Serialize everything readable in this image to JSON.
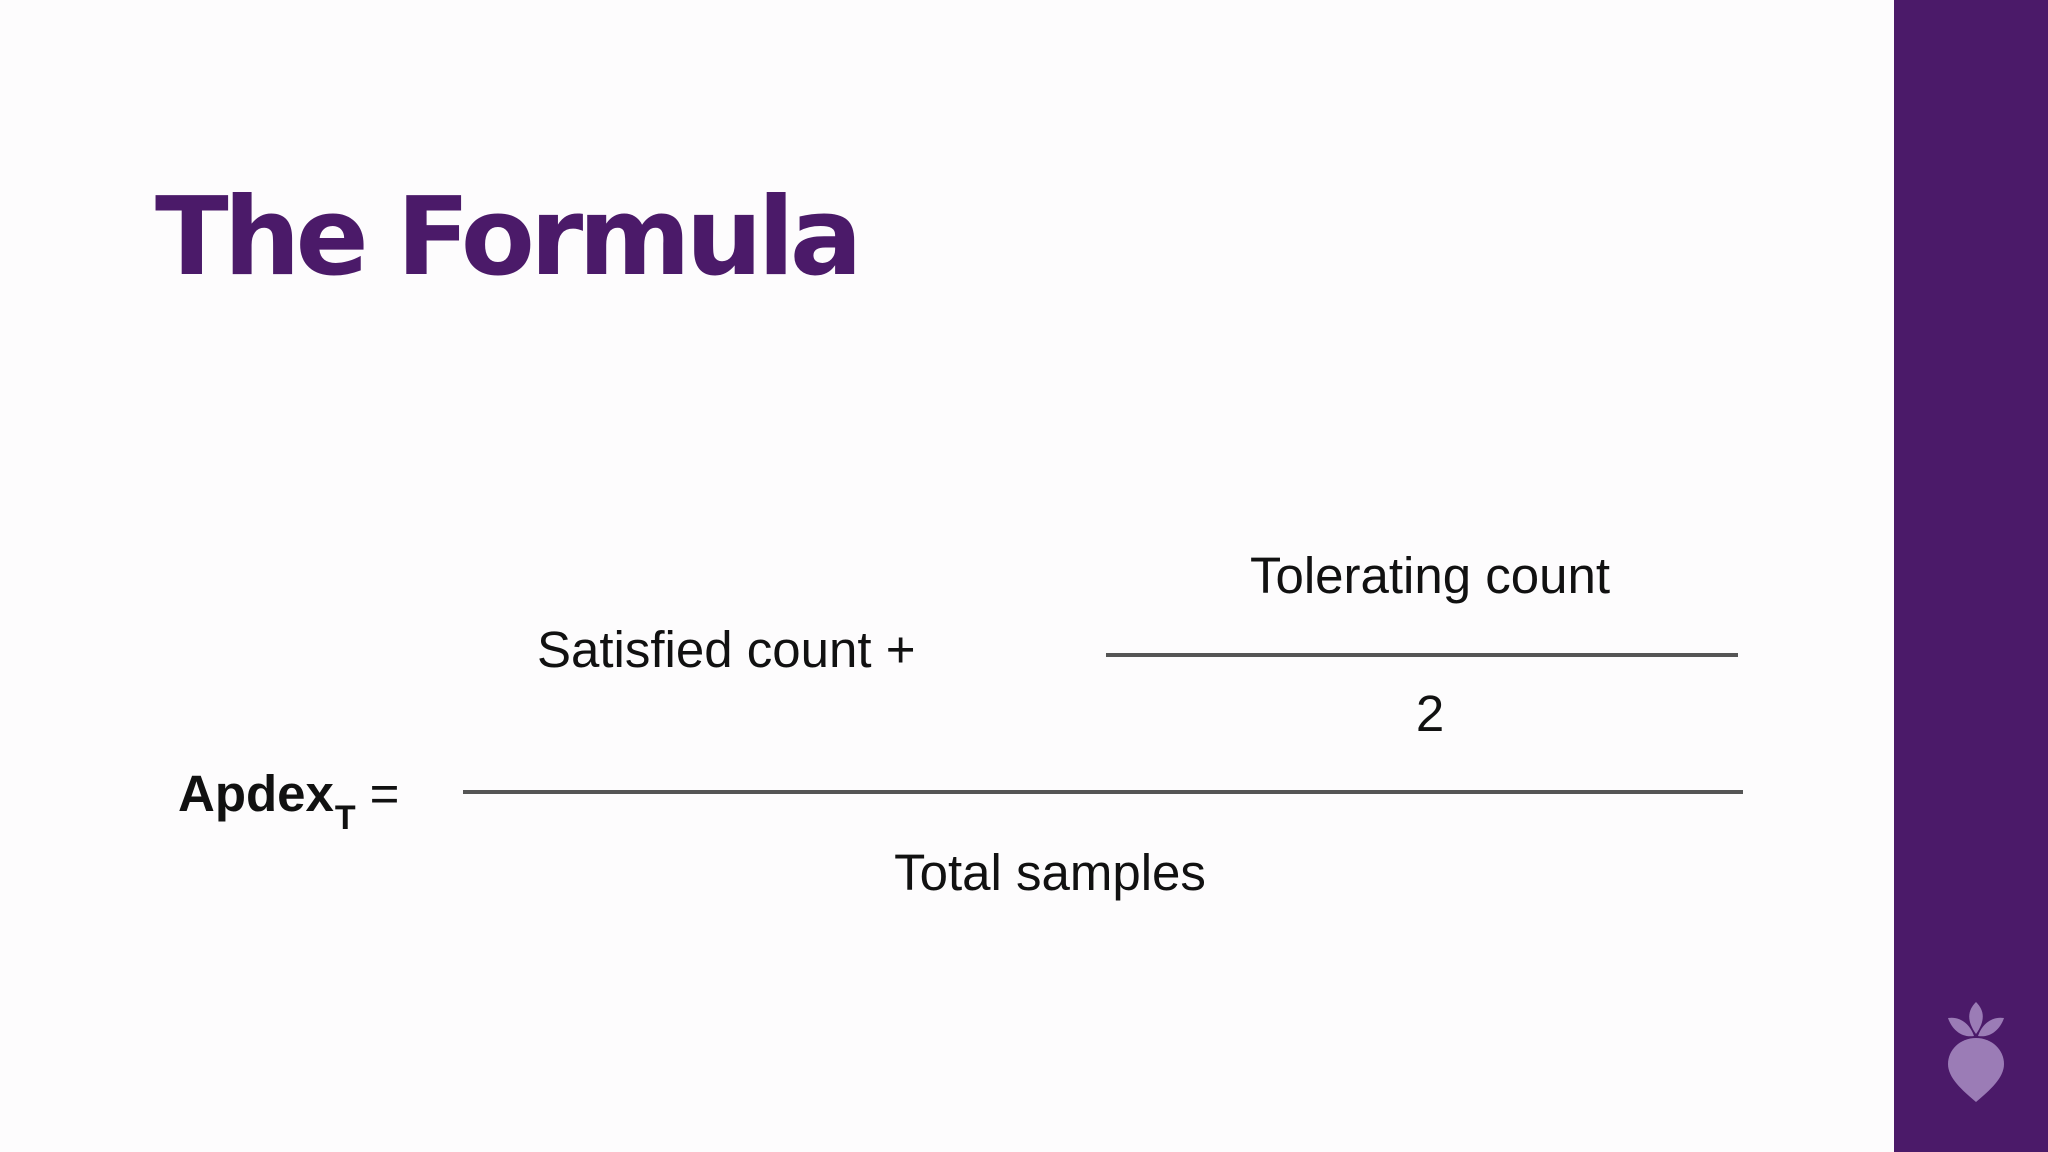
{
  "slide": {
    "title": "The Formula",
    "accent_color": "#4b1a69",
    "logo_icon": "beet-logo-icon"
  },
  "formula": {
    "lhs": "Apdex",
    "lhs_subscript": "T",
    "equals": "=",
    "numerator": {
      "term": "Satisfied count +",
      "fraction": {
        "numerator": "Tolerating count",
        "denominator": "2"
      }
    },
    "denominator": "Total samples"
  }
}
